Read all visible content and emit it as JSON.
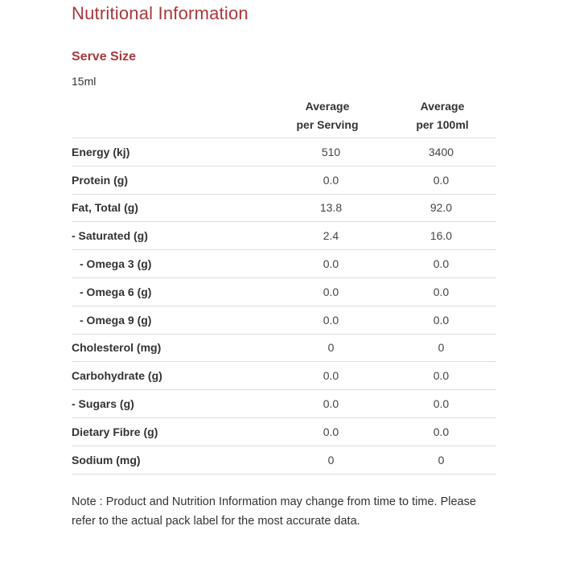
{
  "title": "Nutritional Information",
  "serve": {
    "heading": "Serve Size",
    "value": "15ml"
  },
  "columns": {
    "serving": [
      "Average",
      "per Serving"
    ],
    "per100": [
      "Average",
      "per 100ml"
    ]
  },
  "rows": [
    {
      "label": "Energy (kj)",
      "serving": "510",
      "per100": "3400",
      "indent": 0
    },
    {
      "label": "Protein (g)",
      "serving": "0.0",
      "per100": "0.0",
      "indent": 0
    },
    {
      "label": "Fat, Total (g)",
      "serving": "13.8",
      "per100": "92.0",
      "indent": 0
    },
    {
      "label": "- Saturated (g)",
      "serving": "2.4",
      "per100": "16.0",
      "indent": 0
    },
    {
      "label": "- Omega 3 (g)",
      "serving": "0.0",
      "per100": "0.0",
      "indent": 2
    },
    {
      "label": "- Omega 6 (g)",
      "serving": "0.0",
      "per100": "0.0",
      "indent": 2
    },
    {
      "label": "- Omega 9 (g)",
      "serving": "0.0",
      "per100": "0.0",
      "indent": 2
    },
    {
      "label": "Cholesterol (mg)",
      "serving": "0",
      "per100": "0",
      "indent": 0
    },
    {
      "label": "Carbohydrate (g)",
      "serving": "0.0",
      "per100": "0.0",
      "indent": 0
    },
    {
      "label": "- Sugars (g)",
      "serving": "0.0",
      "per100": "0.0",
      "indent": 0
    },
    {
      "label": "Dietary Fibre (g)",
      "serving": "0.0",
      "per100": "0.0",
      "indent": 0
    },
    {
      "label": "Sodium (mg)",
      "serving": "0",
      "per100": "0",
      "indent": 0
    }
  ],
  "note": "Note : Product and Nutrition Information may change from time to time. Please refer to the actual pack label for the most accurate data."
}
